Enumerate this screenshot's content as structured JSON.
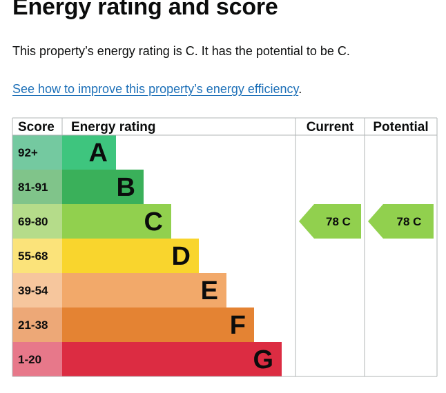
{
  "title": "Energy rating and score",
  "summary": "This property’s energy rating is C. It has the potential to be C.",
  "link": {
    "text": "See how to improve this property’s energy efficiency",
    "trailing": "."
  },
  "chart_data": {
    "type": "bar",
    "columns": [
      "Score",
      "Energy rating",
      "Current",
      "Potential"
    ],
    "bands": [
      {
        "score": "92+",
        "letter": "A",
        "color": "#3ec57e",
        "score_color": "#74c9a0"
      },
      {
        "score": "81-91",
        "letter": "B",
        "color": "#3ab05a",
        "score_color": "#80c48a"
      },
      {
        "score": "69-80",
        "letter": "C",
        "color": "#91d04e",
        "score_color": "#b5dc8a"
      },
      {
        "score": "55-68",
        "letter": "D",
        "color": "#f9d52d",
        "score_color": "#fbe37a"
      },
      {
        "score": "39-54",
        "letter": "E",
        "color": "#f2a96a",
        "score_color": "#f6c69d"
      },
      {
        "score": "21-38",
        "letter": "F",
        "color": "#e48333",
        "score_color": "#eda877"
      },
      {
        "score": "1-20",
        "letter": "G",
        "color": "#dc2c42",
        "score_color": "#e7788a"
      }
    ],
    "current": {
      "score": 78,
      "letter": "C",
      "label": "78  C",
      "color": "#91d04e"
    },
    "potential": {
      "score": 78,
      "letter": "C",
      "label": "78  C",
      "color": "#91d04e"
    }
  }
}
